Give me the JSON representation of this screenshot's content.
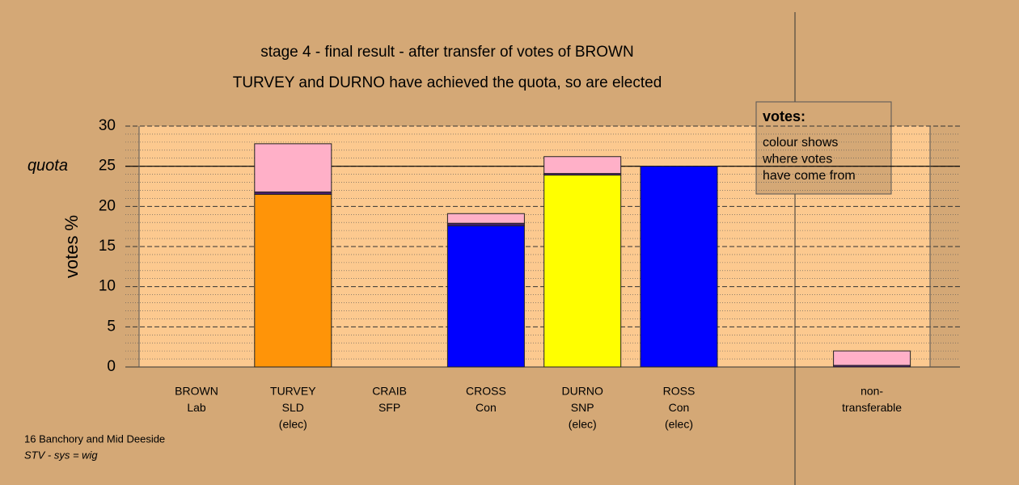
{
  "chart_data": {
    "type": "stacked-bar",
    "title": "stage 4 - final result - after transfer of votes of BROWN",
    "subtitle": "TURVEY and DURNO have achieved the quota, so are elected",
    "y_label": "votes %",
    "categories": [
      [
        "BROWN",
        "Lab"
      ],
      [
        "TURVEY",
        "SLD",
        "(elec)"
      ],
      [
        "CRAIB",
        "SFP"
      ],
      [
        "CROSS",
        "Con"
      ],
      [
        "DURNO",
        "SNP",
        "(elec)"
      ],
      [
        "ROSS",
        "Con",
        "(elec)"
      ],
      null,
      [
        "non-",
        "transferable"
      ]
    ],
    "series": [
      {
        "colors": [
          "#ff9408",
          "#ff9408",
          "#ff9408",
          "#0000ff",
          "#ffff00",
          "#0000ff",
          "#ff9408",
          "#4b1f6f"
        ],
        "values": [
          0,
          21.5,
          0,
          17.6,
          23.9,
          25,
          0,
          0.2
        ]
      },
      {
        "color": "#4b1f6f",
        "values": [
          0,
          0.3,
          0,
          0.3,
          0.2,
          0,
          0,
          0
        ]
      },
      {
        "color": "#ffb0c8",
        "values": [
          0,
          6,
          0,
          1.2,
          2.1,
          0,
          0,
          1.8
        ]
      }
    ],
    "ylim": [
      0,
      30
    ],
    "yticks": [
      0,
      5,
      10,
      15,
      20,
      25,
      30
    ],
    "minor_yticks": [
      1,
      2,
      3,
      4,
      6,
      7,
      8,
      9,
      11,
      12,
      13,
      14,
      16,
      17,
      18,
      19,
      21,
      22,
      23,
      24,
      26,
      27,
      28,
      29
    ],
    "quota": {
      "value": 25,
      "label": "quota"
    },
    "legend": {
      "title": "votes:",
      "lines": [
        "colour shows",
        "where votes",
        "have come from"
      ]
    },
    "footer": [
      "16 Banchory and Mid Deeside",
      "STV - sys = wig"
    ]
  }
}
